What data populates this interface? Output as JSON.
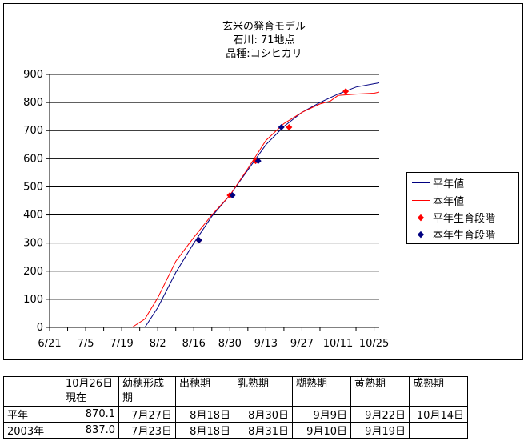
{
  "chart_data": {
    "type": "line",
    "title_lines": [
      "玄米の発育モデル",
      "石川: 71地点",
      "品種:コシヒカリ"
    ],
    "xlabel": "",
    "ylabel": "",
    "x_ticks": [
      "6/21",
      "7/5",
      "7/19",
      "8/2",
      "8/16",
      "8/30",
      "9/13",
      "9/27",
      "10/11",
      "10/25"
    ],
    "y_ticks": [
      "0",
      "100",
      "200",
      "300",
      "400",
      "500",
      "600",
      "700",
      "800",
      "900"
    ],
    "xlim": [
      "6/21",
      "10/27"
    ],
    "ylim": [
      0,
      900
    ],
    "grid": "horizontal",
    "legend_position": "right",
    "series": [
      {
        "name": "平年値",
        "kind": "line",
        "color": "#000080",
        "points": [
          [
            "7/28",
            0
          ],
          [
            "8/2",
            70
          ],
          [
            "8/9",
            195
          ],
          [
            "8/16",
            300
          ],
          [
            "8/23",
            395
          ],
          [
            "8/30",
            470
          ],
          [
            "9/6",
            560
          ],
          [
            "9/13",
            650
          ],
          [
            "9/20",
            715
          ],
          [
            "9/27",
            765
          ],
          [
            "10/4",
            800
          ],
          [
            "10/11",
            830
          ],
          [
            "10/18",
            855
          ],
          [
            "10/25",
            867
          ],
          [
            "10/27",
            870
          ]
        ]
      },
      {
        "name": "本年値",
        "kind": "line",
        "color": "#ff0000",
        "points": [
          [
            "7/23",
            0
          ],
          [
            "7/28",
            30
          ],
          [
            "8/2",
            105
          ],
          [
            "8/9",
            235
          ],
          [
            "8/16",
            320
          ],
          [
            "8/23",
            400
          ],
          [
            "8/30",
            470
          ],
          [
            "9/6",
            565
          ],
          [
            "9/13",
            665
          ],
          [
            "9/20",
            725
          ],
          [
            "9/27",
            765
          ],
          [
            "10/4",
            795
          ],
          [
            "10/8",
            805
          ],
          [
            "10/11",
            825
          ],
          [
            "10/18",
            830
          ],
          [
            "10/25",
            833
          ],
          [
            "10/27",
            837
          ]
        ]
      },
      {
        "name": "平年生育段階",
        "kind": "marker",
        "color": "#ff0000",
        "points": [
          [
            "8/18",
            310
          ],
          [
            "8/30",
            470
          ],
          [
            "9/9",
            592
          ],
          [
            "9/22",
            712
          ],
          [
            "10/14",
            840
          ]
        ]
      },
      {
        "name": "本年生育段階",
        "kind": "marker",
        "color": "#000080",
        "points": [
          [
            "8/18",
            310
          ],
          [
            "8/31",
            470
          ],
          [
            "9/10",
            592
          ],
          [
            "9/19",
            712
          ]
        ]
      }
    ]
  },
  "stage_table": {
    "header": [
      "",
      "10月26日現在",
      "幼穂形成期",
      "出穂期",
      "乳熟期",
      "糊熟期",
      "黄熟期",
      "成熟期"
    ],
    "rows": [
      {
        "label": "平年",
        "current": "870.1",
        "stages": [
          "7月27日",
          "8月18日",
          "8月30日",
          "9月9日",
          "9月22日",
          "10月14日"
        ]
      },
      {
        "label": "2003年",
        "current": "837.0",
        "stages": [
          "7月23日",
          "8月18日",
          "8月31日",
          "9月10日",
          "9月19日",
          ""
        ]
      }
    ]
  }
}
